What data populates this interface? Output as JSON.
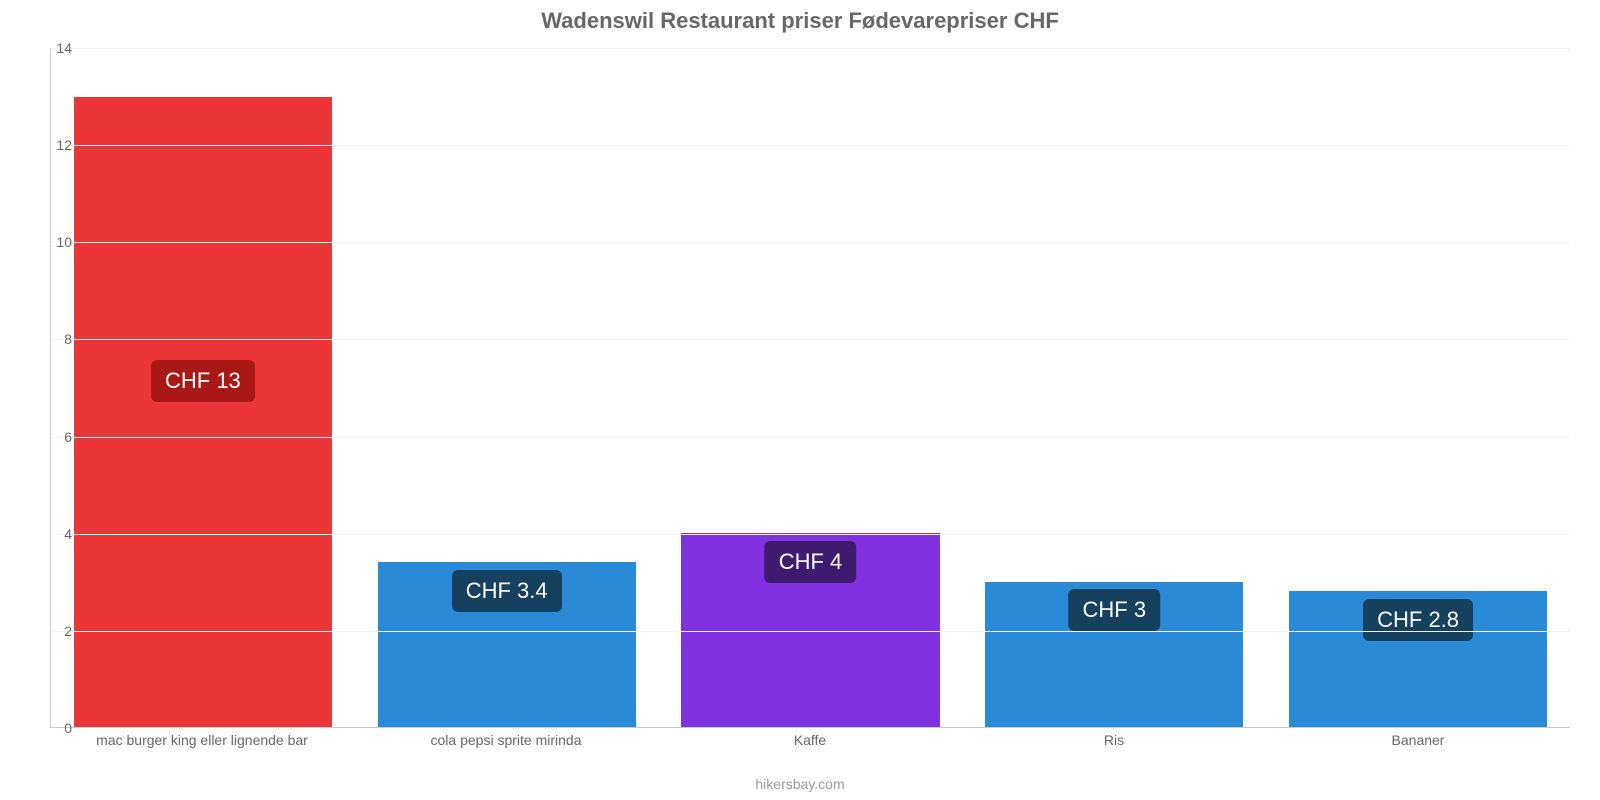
{
  "chart": {
    "type": "bar",
    "title": "Wadenswil Restaurant priser Fødevarepriser CHF",
    "title_fontsize": 22,
    "title_color": "#676767",
    "credit": "hikersbay.com",
    "credit_color": "#9a9a9a",
    "background_color": "#ffffff",
    "axis_color": "#c9c9c9",
    "grid_color": "#f3f3f3",
    "tick_color": "#676767",
    "tick_fontsize": 14,
    "ylim": [
      0,
      14
    ],
    "ytick_step": 2,
    "bar_width_pct": 85,
    "value_label_fontsize": 22,
    "currency_prefix": "CHF ",
    "categories": [
      "mac burger king eller lignende bar",
      "cola pepsi sprite mirinda",
      "Kaffe",
      "Ris",
      "Bananer"
    ],
    "values": [
      13,
      3.4,
      4,
      3,
      2.8
    ],
    "value_labels": [
      "CHF 13",
      "CHF 3.4",
      "CHF 4",
      "CHF 3",
      "CHF 2.8"
    ],
    "bar_colors": [
      "#eb3639",
      "#2a8ad6",
      "#8031e0",
      "#2a8ad6",
      "#2a8ad6"
    ],
    "label_bg_colors": [
      "#a81814",
      "#15405e",
      "#3e1b6e",
      "#15405e",
      "#15405e"
    ],
    "label_text_color": "#ffffff"
  }
}
